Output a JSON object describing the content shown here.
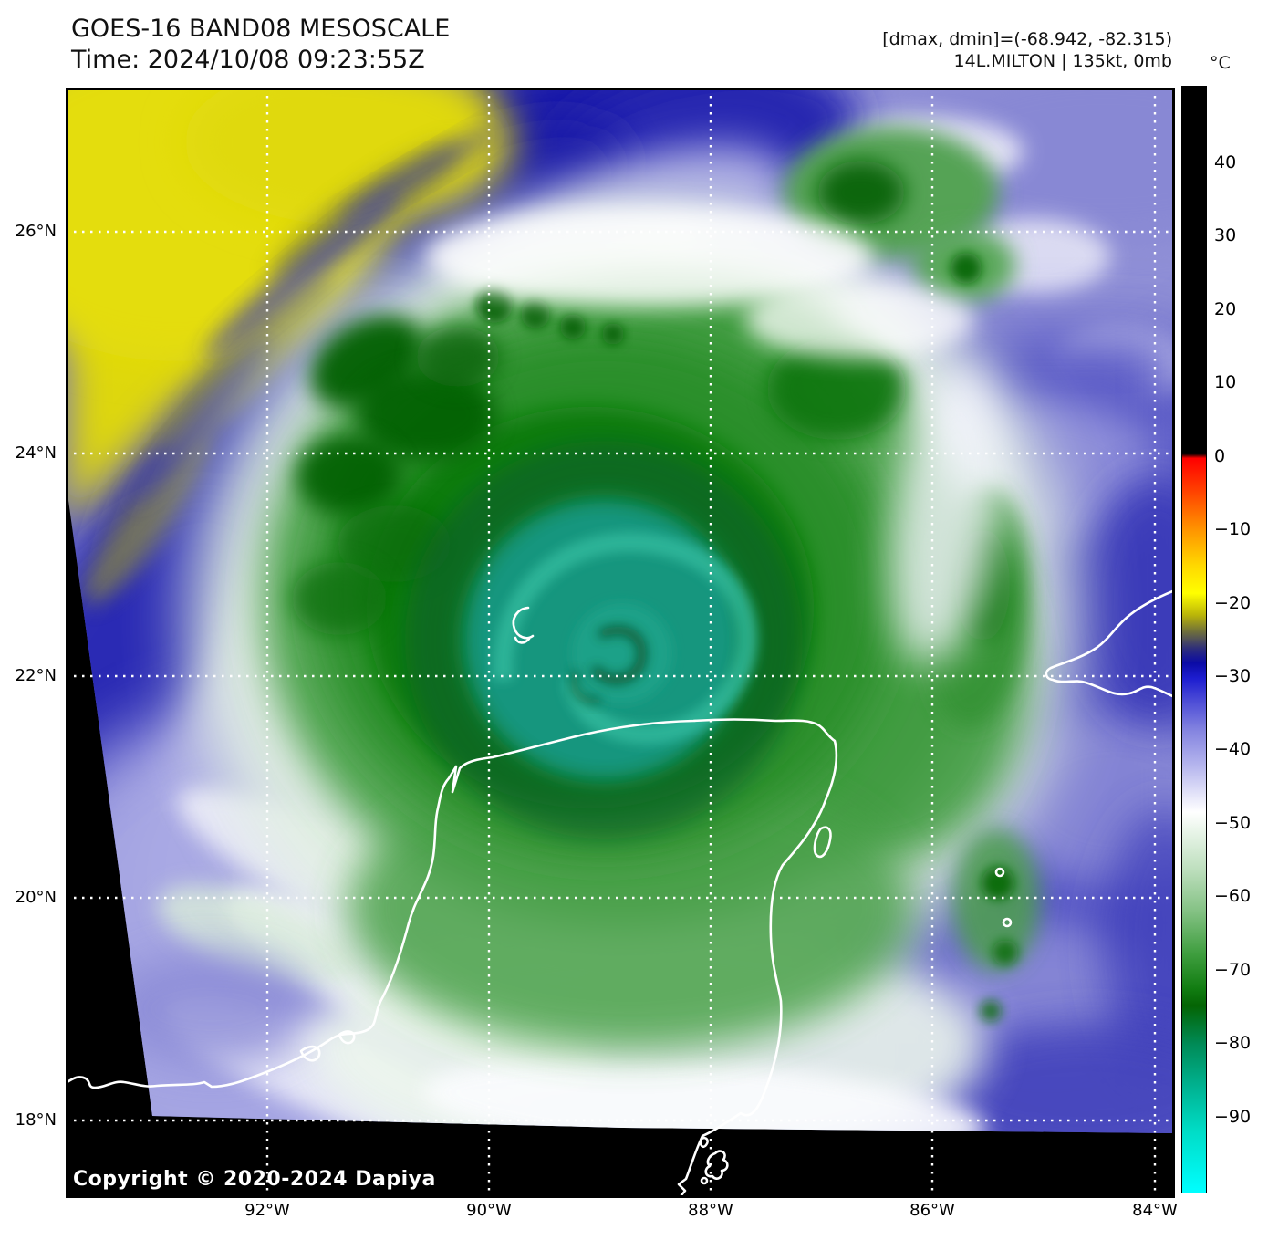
{
  "header": {
    "title": "GOES-16 BAND08 MESOSCALE",
    "time_line": "Time: 2024/10/08 09:23:55Z",
    "range_line": "[dmax, dmin]=(-68.942, -82.315)",
    "storm_line": "14L.MILTON | 135kt, 0mb"
  },
  "colorbar": {
    "unit": "°C",
    "tick_labels": [
      "40",
      "30",
      "20",
      "10",
      "0",
      "−10",
      "−20",
      "−30",
      "−40",
      "−50",
      "−60",
      "−70",
      "−80",
      "−90"
    ],
    "tick_values": [
      40,
      30,
      20,
      10,
      0,
      -10,
      -20,
      -30,
      -40,
      -50,
      -60,
      -70,
      -80,
      -90
    ],
    "stops": [
      {
        "p": 0,
        "c": "#000000"
      },
      {
        "p": 33.2,
        "c": "#000000"
      },
      {
        "p": 33.6,
        "c": "#ff0000"
      },
      {
        "p": 36.5,
        "c": "#ff4000"
      },
      {
        "p": 40.0,
        "c": "#ff9300"
      },
      {
        "p": 43.3,
        "c": "#ffd800"
      },
      {
        "p": 45.8,
        "c": "#ffff00"
      },
      {
        "p": 47.8,
        "c": "#b9b409"
      },
      {
        "p": 49.3,
        "c": "#6e6e3c"
      },
      {
        "p": 50.8,
        "c": "#2e2e7a"
      },
      {
        "p": 52.1,
        "c": "#0b0ba5"
      },
      {
        "p": 53.5,
        "c": "#1d1dd0"
      },
      {
        "p": 55.5,
        "c": "#4b4bd6"
      },
      {
        "p": 58.2,
        "c": "#8484e0"
      },
      {
        "p": 61.5,
        "c": "#b7b7ee"
      },
      {
        "p": 64.3,
        "c": "#e9e9fa"
      },
      {
        "p": 65.6,
        "c": "#ffffff"
      },
      {
        "p": 67.3,
        "c": "#e9f5e9"
      },
      {
        "p": 70.6,
        "c": "#c0e0c0"
      },
      {
        "p": 74.5,
        "c": "#85c285"
      },
      {
        "p": 78.4,
        "c": "#3f9e3f"
      },
      {
        "p": 81.6,
        "c": "#117c11"
      },
      {
        "p": 83.1,
        "c": "#046404"
      },
      {
        "p": 86.6,
        "c": "#008b57"
      },
      {
        "p": 90.5,
        "c": "#00b392"
      },
      {
        "p": 94.4,
        "c": "#00dcc6"
      },
      {
        "p": 100,
        "c": "#00ffff"
      }
    ]
  },
  "map": {
    "lat_labels": [
      "26°N",
      "24°N",
      "22°N",
      "20°N",
      "18°N"
    ],
    "lon_labels": [
      "92°W",
      "90°W",
      "88°W",
      "86°W",
      "84°W"
    ],
    "copyright": "Copyright © 2020-2024 Dapiya",
    "palette": {
      "dry_yellow": "#ded70c",
      "deep_blue": "#1a1aa8",
      "mid_blue": "#5454c4",
      "lavender": "#a6a6e2",
      "cloud_white": "#f4f4fd",
      "green_light": "#cfe7cf",
      "green_mid": "#2a8f2a",
      "green_dark": "#065f06",
      "core_teal": "#14967e",
      "coastline": "#ffffff",
      "background": "#000000"
    }
  }
}
